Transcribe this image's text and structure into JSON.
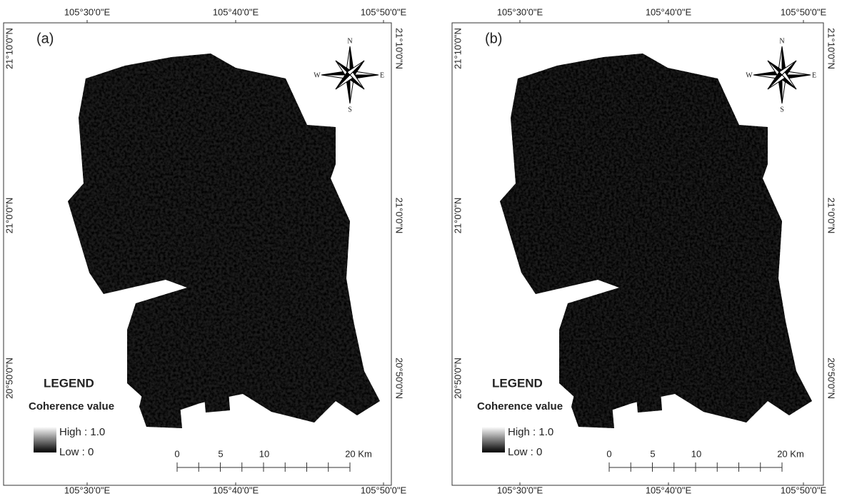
{
  "panels": [
    {
      "label": "(a)",
      "top_ticks": [
        "105°30'0\"E",
        "105°40'0\"E",
        "105°50'0\"E"
      ],
      "bottom_ticks": [
        "105°30'0\"E",
        "105°40'0\"E",
        "105°50'0\"E"
      ],
      "left_ticks": [
        "21°10'0\"N",
        "21°0'0\"N",
        "20°50'0\"N"
      ],
      "right_ticks": [
        "21°10'0\"N",
        "21°0'0\"N",
        "20°50'0\"N"
      ],
      "compass": {
        "n": "N",
        "s": "S",
        "e": "E",
        "w": "W"
      },
      "legend": {
        "title": "LEGEND",
        "subtitle": "Coherence value",
        "high": "High : 1.0",
        "low": "Low : 0"
      },
      "scale_labels": [
        "0",
        "5",
        "10",
        "20 Km"
      ]
    },
    {
      "label": "(b)",
      "top_ticks": [
        "105°30'0\"E",
        "105°40'0\"E",
        "105°50'0\"E"
      ],
      "bottom_ticks": [
        "105°30'0\"E",
        "105°40'0\"E",
        "105°50'0\"E"
      ],
      "left_ticks": [
        "21°10'0\"N",
        "21°0'0\"N",
        "20°50'0\"N"
      ],
      "right_ticks": [
        "21°10'0\"N",
        "21°0'0\"N",
        "20°50'0\"N"
      ],
      "compass": {
        "n": "N",
        "s": "S",
        "e": "E",
        "w": "W"
      },
      "legend": {
        "title": "LEGEND",
        "subtitle": "Coherence value",
        "high": "High : 1.0",
        "low": "Low : 0"
      },
      "scale_labels": [
        "0",
        "5",
        "10",
        "20 Km"
      ]
    }
  ]
}
